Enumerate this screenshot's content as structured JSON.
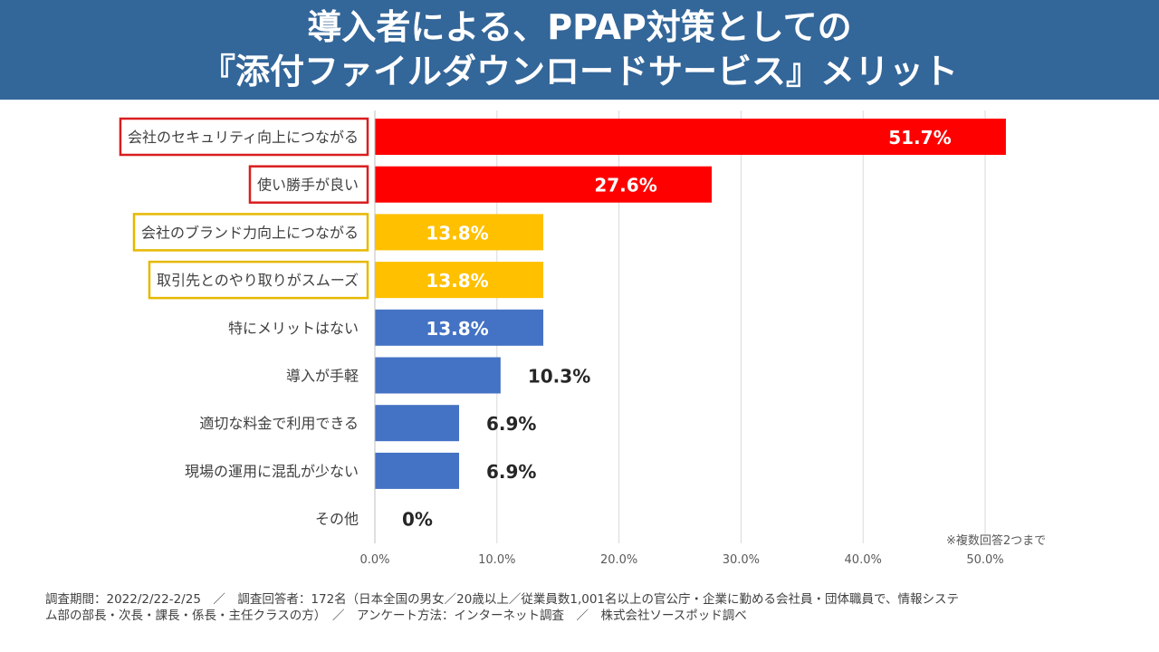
{
  "title": {
    "line1": "導入者による、PPAP対策としての",
    "line2": "『添付ファイルダウンロードサービス』メリット"
  },
  "colors": {
    "header_bg": "#336699",
    "highlight_red": "#FF0000",
    "highlight_yellow": "#FFC000",
    "default_blue": "#4472C4"
  },
  "chart_data": {
    "type": "bar",
    "orientation": "horizontal",
    "categories": [
      "会社のセキュリティ向上につながる",
      "使い勝手が良い",
      "会社のブランド力向上につながる",
      "取引先とのやり取りがスムーズ",
      "特にメリットはない",
      "導入が手軽",
      "適切な料金で利用できる",
      "現場の運用に混乱が少ない",
      "その他"
    ],
    "values": [
      51.7,
      27.6,
      13.8,
      13.8,
      13.8,
      10.3,
      6.9,
      6.9,
      0
    ],
    "value_labels": [
      "51.7%",
      "27.6%",
      "13.8%",
      "13.8%",
      "13.8%",
      "10.3%",
      "6.9%",
      "6.9%",
      "0%"
    ],
    "bar_colors": [
      "#FF0000",
      "#FF0000",
      "#FFC000",
      "#FFC000",
      "#4472C4",
      "#4472C4",
      "#4472C4",
      "#4472C4",
      "#4472C4"
    ],
    "label_box_colors": [
      "#D91E1E",
      "#D91E1E",
      "#E6B800",
      "#E6B800",
      null,
      null,
      null,
      null,
      null
    ],
    "xlim": [
      0,
      50
    ],
    "x_ticks": [
      "0.0%",
      "10.0%",
      "20.0%",
      "30.0%",
      "40.0%",
      "50.0%"
    ],
    "grid": true
  },
  "note": "※複数回答2つまで",
  "footer": {
    "line1": "調査期間：2022/2/22-2/25　／　調査回答者：172名（日本全国の男女／20歳以上／従業員数1,001名以上の官公庁・企業に勤める会社員・団体職員で、情報システ",
    "line2": "ム部の部長・次長・課長・係長・主任クラスの方）　／　アンケート方法：インターネット調査　／　株式会社ソースポッド調べ"
  }
}
